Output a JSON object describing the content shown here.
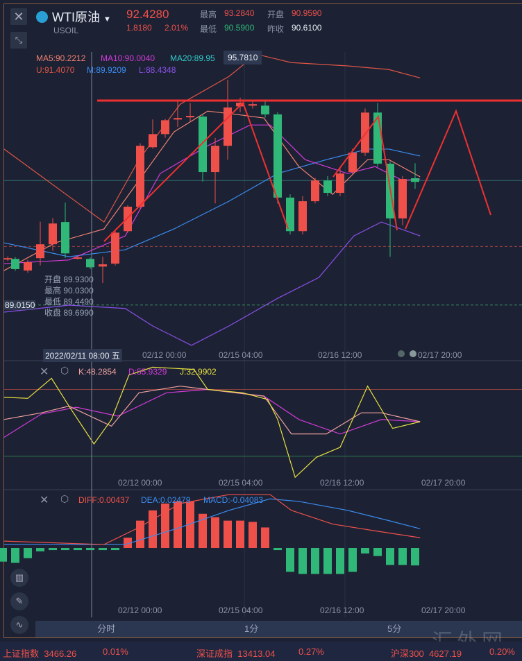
{
  "header": {
    "symbol": "WTI原油",
    "code": "USOIL",
    "price": "92.4280",
    "change": "1.8180",
    "change_pct": "2.01%",
    "high_label": "最高",
    "high": "93.2840",
    "open_label": "开盘",
    "open": "90.9590",
    "low_label": "最低",
    "low": "90.5900",
    "prev_close_label": "昨收",
    "prev_close": "90.6100"
  },
  "indicators": {
    "ma5": "MA5:90.2212",
    "ma10": "MA10:90.0040",
    "ma20": "MA20:89.95",
    "boll_u": "U:91.4070",
    "boll_m": "M:89.9209",
    "boll_l": "L:88.4348",
    "kdj_k": "K:48.2854",
    "kdj_d": "D:55.9329",
    "kdj_j": "J:32.9902",
    "diff": "DIFF:0.00437",
    "dea": "DEA:0.02479",
    "macd": "MACD:-0.04083"
  },
  "crosshair": {
    "price_tag": "95.7810",
    "price_left": "89.0150",
    "time": "2022/02/11 08:00 五",
    "tooltip": [
      {
        "label": "开盘",
        "value": "89.9300"
      },
      {
        "label": "最高",
        "value": "90.0300"
      },
      {
        "label": "最低",
        "value": "89.4490"
      },
      {
        "label": "收盘",
        "value": "89.6990"
      }
    ]
  },
  "time_axis": [
    "02/12 00:00",
    "02/15 04:00",
    "02/16 12:00",
    "02/17 20:00"
  ],
  "tabs": [
    "分时",
    "1分",
    "5分"
  ],
  "watermark": "汇外网",
  "tickers": [
    {
      "name": "上证指数",
      "value": "3466.26",
      "pct": "0.01%"
    },
    {
      "name": "深证成指",
      "value": "13413.04",
      "pct": "0.27%"
    },
    {
      "name": "沪深300",
      "value": "4627.19",
      "pct": "0.20%"
    }
  ],
  "colors": {
    "up": "#f0504a",
    "down": "#2fb877",
    "ma5": "#f08070",
    "ma10": "#d33ad8",
    "boll_u": "#e05545",
    "boll_m": "#3c8cf0",
    "boll_l": "#8a50e8",
    "k": "#f0a0a0",
    "d": "#d33ad8",
    "j": "#e8e040",
    "annotation": "#f03030"
  },
  "chart_data": [
    {
      "type": "candlestick",
      "x_unit": "bar index",
      "ylim": [
        87.87,
        95.95
      ],
      "candles": [
        [
          -0.6,
          90.28,
          90.3,
          90.35,
          90.22
        ],
        [
          0,
          90.28,
          90.0,
          90.33,
          89.95
        ],
        [
          1,
          89.96,
          90.19,
          90.25,
          89.9
        ],
        [
          2,
          90.3,
          90.68,
          91.3,
          90.1
        ],
        [
          3,
          90.68,
          91.25,
          91.4,
          90.5
        ],
        [
          4,
          91.29,
          90.43,
          91.82,
          90.3
        ],
        [
          5,
          90.3,
          90.32,
          90.36,
          90.26
        ],
        [
          6,
          90.28,
          90.05,
          90.32,
          90.0
        ],
        [
          7,
          90.07,
          90.13,
          90.34,
          89.62
        ],
        [
          8,
          90.15,
          91.0,
          91.05,
          90.1
        ],
        [
          9,
          91.04,
          91.71,
          91.75,
          91.0
        ],
        [
          10,
          91.71,
          93.38,
          93.45,
          91.65
        ],
        [
          11,
          93.34,
          93.7,
          94.1,
          93.3
        ],
        [
          12,
          93.7,
          94.08,
          94.12,
          93.6
        ],
        [
          13,
          94.1,
          94.14,
          94.6,
          93.9
        ],
        [
          14,
          94.16,
          94.2,
          94.55,
          94.05
        ],
        [
          15,
          94.18,
          92.66,
          94.25,
          92.4
        ],
        [
          16,
          92.66,
          93.38,
          93.6,
          91.8
        ],
        [
          17,
          93.38,
          94.43,
          95.19,
          93.0
        ],
        [
          18,
          94.46,
          94.56,
          94.7,
          94.3
        ],
        [
          19,
          94.48,
          94.52,
          94.62,
          94.4
        ],
        [
          20,
          94.48,
          94.24,
          94.65,
          94.15
        ],
        [
          21,
          94.24,
          91.96,
          94.3,
          91.8
        ],
        [
          22,
          91.96,
          91.04,
          92.05,
          90.95
        ],
        [
          23,
          91.04,
          91.86,
          92.0,
          90.95
        ],
        [
          24,
          91.86,
          92.43,
          92.5,
          91.8
        ],
        [
          25,
          92.43,
          92.09,
          92.55,
          92.0
        ],
        [
          26,
          92.09,
          92.62,
          92.75,
          92.0
        ],
        [
          27,
          92.66,
          93.19,
          93.3,
          92.6
        ],
        [
          28,
          93.19,
          94.29,
          94.4,
          93.1
        ],
        [
          29,
          94.29,
          92.89,
          94.55,
          92.8
        ],
        [
          30,
          92.89,
          91.39,
          92.95,
          90.34
        ],
        [
          31,
          91.39,
          92.47,
          92.55,
          91.2
        ],
        [
          32,
          92.49,
          92.39,
          92.9,
          92.2
        ]
      ],
      "lines": {
        "boll_u": [
          [
            -0.9,
            93.29
          ],
          [
            7.1,
            91.29
          ],
          [
            9.9,
            93.0
          ],
          [
            13.2,
            94.52
          ],
          [
            17.1,
            95.28
          ],
          [
            19.3,
            95.89
          ],
          [
            22.1,
            95.66
          ],
          [
            26.6,
            95.57
          ],
          [
            29.9,
            95.47
          ],
          [
            32.4,
            95.24
          ]
        ],
        "boll_m": [
          [
            -0.9,
            90.72
          ],
          [
            4.3,
            90.34
          ],
          [
            8.8,
            90.53
          ],
          [
            12.7,
            91.1
          ],
          [
            17.1,
            91.86
          ],
          [
            21,
            92.62
          ],
          [
            24.9,
            93.0
          ],
          [
            28.2,
            93.29
          ],
          [
            29.9,
            93.29
          ],
          [
            32.4,
            93.1
          ]
        ],
        "boll_l": [
          [
            -0.9,
            88.82
          ],
          [
            4.3,
            89.01
          ],
          [
            8.8,
            88.92
          ],
          [
            11,
            88.44
          ],
          [
            14.1,
            87.91
          ],
          [
            17.1,
            88.44
          ],
          [
            21,
            89.2
          ],
          [
            24.3,
            89.77
          ],
          [
            27.1,
            90.91
          ],
          [
            29.3,
            91.29
          ],
          [
            32.4,
            90.91
          ]
        ],
        "ma10": [
          [
            -0.9,
            90.15
          ],
          [
            4.3,
            90.25
          ],
          [
            8.8,
            90.91
          ],
          [
            11.6,
            92.62
          ],
          [
            15.4,
            93.38
          ],
          [
            18.8,
            93.95
          ],
          [
            20.4,
            93.95
          ],
          [
            23.2,
            93.0
          ],
          [
            26.6,
            92.62
          ],
          [
            28.8,
            92.81
          ],
          [
            31,
            92.43
          ],
          [
            32.4,
            92.47
          ]
        ],
        "ma5": [
          [
            -0.9,
            89.96
          ],
          [
            3.2,
            90.72
          ],
          [
            7.1,
            91.1
          ],
          [
            9.9,
            92.43
          ],
          [
            12.7,
            93.76
          ],
          [
            15.4,
            94.33
          ],
          [
            17.7,
            94.24
          ],
          [
            19.9,
            94.14
          ],
          [
            22.7,
            92.81
          ],
          [
            25.4,
            92.05
          ],
          [
            28.2,
            93.0
          ],
          [
            29.9,
            93.0
          ],
          [
            32.4,
            92.53
          ]
        ]
      },
      "hlines": {
        "resistance": 94.61,
        "dashed_red": 90.62,
        "dashed_green": 89.015,
        "last": 92.428
      }
    },
    {
      "type": "line",
      "x_unit": "bar index",
      "ylim": [
        -2,
        104
      ],
      "ref_lines": [
        20,
        80
      ],
      "series": {
        "j": [
          [
            -0.9,
            73
          ],
          [
            1,
            72
          ],
          [
            2.9,
            90
          ],
          [
            4.3,
            65
          ],
          [
            6.3,
            31
          ],
          [
            7.7,
            53
          ],
          [
            9.1,
            93
          ],
          [
            11,
            100
          ],
          [
            14.3,
            98
          ],
          [
            15.4,
            80
          ],
          [
            18.2,
            77
          ],
          [
            20.2,
            71
          ],
          [
            21,
            53
          ],
          [
            22.4,
            1
          ],
          [
            24.1,
            19
          ],
          [
            26,
            28
          ],
          [
            28.2,
            83
          ],
          [
            30.2,
            45
          ],
          [
            32.4,
            51
          ]
        ],
        "k": [
          [
            -0.9,
            53
          ],
          [
            2.1,
            59
          ],
          [
            4.3,
            65
          ],
          [
            7.7,
            47
          ],
          [
            9.9,
            77
          ],
          [
            13.2,
            83
          ],
          [
            15.4,
            80
          ],
          [
            19.9,
            74
          ],
          [
            22.1,
            40
          ],
          [
            24.9,
            40
          ],
          [
            27.7,
            59
          ],
          [
            29.3,
            59
          ],
          [
            32.4,
            51
          ]
        ],
        "d": [
          [
            -0.9,
            37
          ],
          [
            2.1,
            58
          ],
          [
            4.9,
            64
          ],
          [
            8.2,
            56
          ],
          [
            12.1,
            77
          ],
          [
            15.4,
            80
          ],
          [
            19.9,
            74
          ],
          [
            22.7,
            53
          ],
          [
            26,
            40
          ],
          [
            29.3,
            53
          ],
          [
            32.4,
            51
          ]
        ]
      }
    },
    {
      "type": "bar+line",
      "x_unit": "bar index",
      "ylim": [
        -0.13,
        0.13
      ],
      "macd_start_index": -1,
      "macd": [
        -0.032,
        -0.035,
        -0.024,
        -0.008,
        -0.005,
        -0.005,
        -0.005,
        -0.005,
        -0.005,
        -0.005,
        0.024,
        0.064,
        0.088,
        0.104,
        0.109,
        0.109,
        0.08,
        0.072,
        0.064,
        0.064,
        0.061,
        0.048,
        -0.005,
        -0.056,
        -0.061,
        -0.061,
        -0.061,
        -0.061,
        -0.056,
        -0.013,
        -0.019,
        -0.04,
        -0.04,
        -0.041
      ],
      "diff": [
        [
          -0.9,
          0.016
        ],
        [
          7.1,
          0.008
        ],
        [
          9.9,
          0.048
        ],
        [
          13.2,
          0.104
        ],
        [
          17.1,
          0.125
        ],
        [
          20.4,
          0.125
        ],
        [
          22.1,
          0.088
        ],
        [
          25.4,
          0.056
        ],
        [
          28.8,
          0.04
        ],
        [
          32.4,
          0.024
        ]
      ],
      "dea": [
        [
          -0.9,
          0.008
        ],
        [
          8.8,
          0.008
        ],
        [
          13.2,
          0.048
        ],
        [
          17.1,
          0.088
        ],
        [
          20.4,
          0.115
        ],
        [
          22.7,
          0.109
        ],
        [
          26.6,
          0.088
        ],
        [
          29.9,
          0.064
        ],
        [
          32.4,
          0.045
        ]
      ]
    }
  ]
}
